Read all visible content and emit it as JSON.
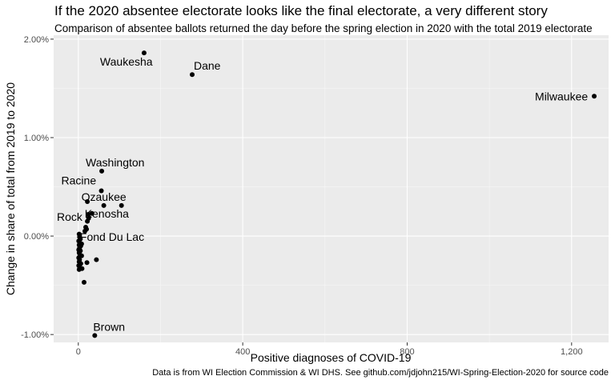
{
  "chart_data": {
    "type": "scatter",
    "title": "If the 2020 absentee electorate looks like the final electorate, a very different story",
    "subtitle": "Comparison of absentee ballots returned the day before the spring election in 2020 with the total 2019 electorate",
    "caption": "Data is from WI Election Commission & WI DHS. See github.com/jdjohn215/WI-Spring-Election-2020 for source code",
    "xlabel": "Positive diagnoses of COVID-19",
    "ylabel": "Change in share of total from 2019 to 2020",
    "xlim": [
      -60,
      1290
    ],
    "ylim": [
      -1.08,
      2.04
    ],
    "x_ticks": [
      0,
      400,
      800,
      1200
    ],
    "x_tick_labels": [
      "0",
      "400",
      "800",
      "1,200"
    ],
    "y_ticks": [
      -1,
      0,
      1,
      2
    ],
    "y_tick_labels": [
      "-1.00%",
      "0.00%",
      "1.00%",
      "2.00%"
    ],
    "grid": true,
    "labeled_points": [
      {
        "label": "Waukesha",
        "x": 160,
        "y": 1.86
      },
      {
        "label": "Dane",
        "x": 277,
        "y": 1.64
      },
      {
        "label": "Milwaukee",
        "x": 1255,
        "y": 1.42
      },
      {
        "label": "Washington",
        "x": 57,
        "y": 0.66
      },
      {
        "label": "Racine",
        "x": 56,
        "y": 0.46
      },
      {
        "label": "Ozaukee",
        "x": 62,
        "y": 0.31
      },
      {
        "label": "Kenosha",
        "x": 105,
        "y": 0.31
      },
      {
        "label": "Rock",
        "x": 18,
        "y": 0.09
      },
      {
        "label": "Fond Du Lac",
        "x": 8,
        "y": -0.08
      },
      {
        "label": "Brown",
        "x": 40,
        "y": -1.01
      }
    ],
    "points": [
      {
        "x": 22,
        "y": 0.35
      },
      {
        "x": 33,
        "y": 0.23
      },
      {
        "x": 24,
        "y": 0.22
      },
      {
        "x": 25,
        "y": 0.18
      },
      {
        "x": 22,
        "y": 0.15
      },
      {
        "x": 20,
        "y": 0.07
      },
      {
        "x": 16,
        "y": 0.05
      },
      {
        "x": 2,
        "y": 0.02
      },
      {
        "x": 3,
        "y": -0.01
      },
      {
        "x": 5,
        "y": -0.03
      },
      {
        "x": 1,
        "y": -0.05
      },
      {
        "x": 4,
        "y": -0.07
      },
      {
        "x": 2,
        "y": -0.09
      },
      {
        "x": 6,
        "y": -0.1
      },
      {
        "x": 3,
        "y": -0.12
      },
      {
        "x": 1,
        "y": -0.14
      },
      {
        "x": 5,
        "y": -0.15
      },
      {
        "x": 2,
        "y": -0.17
      },
      {
        "x": 4,
        "y": -0.19
      },
      {
        "x": 8,
        "y": -0.2
      },
      {
        "x": 1,
        "y": -0.22
      },
      {
        "x": 3,
        "y": -0.24
      },
      {
        "x": 2,
        "y": -0.26
      },
      {
        "x": 6,
        "y": -0.28
      },
      {
        "x": 1,
        "y": -0.3
      },
      {
        "x": 4,
        "y": -0.32
      },
      {
        "x": 9,
        "y": -0.33
      },
      {
        "x": 2,
        "y": -0.34
      },
      {
        "x": 21,
        "y": -0.27
      },
      {
        "x": 44,
        "y": -0.24
      },
      {
        "x": 14,
        "y": -0.47
      }
    ]
  }
}
